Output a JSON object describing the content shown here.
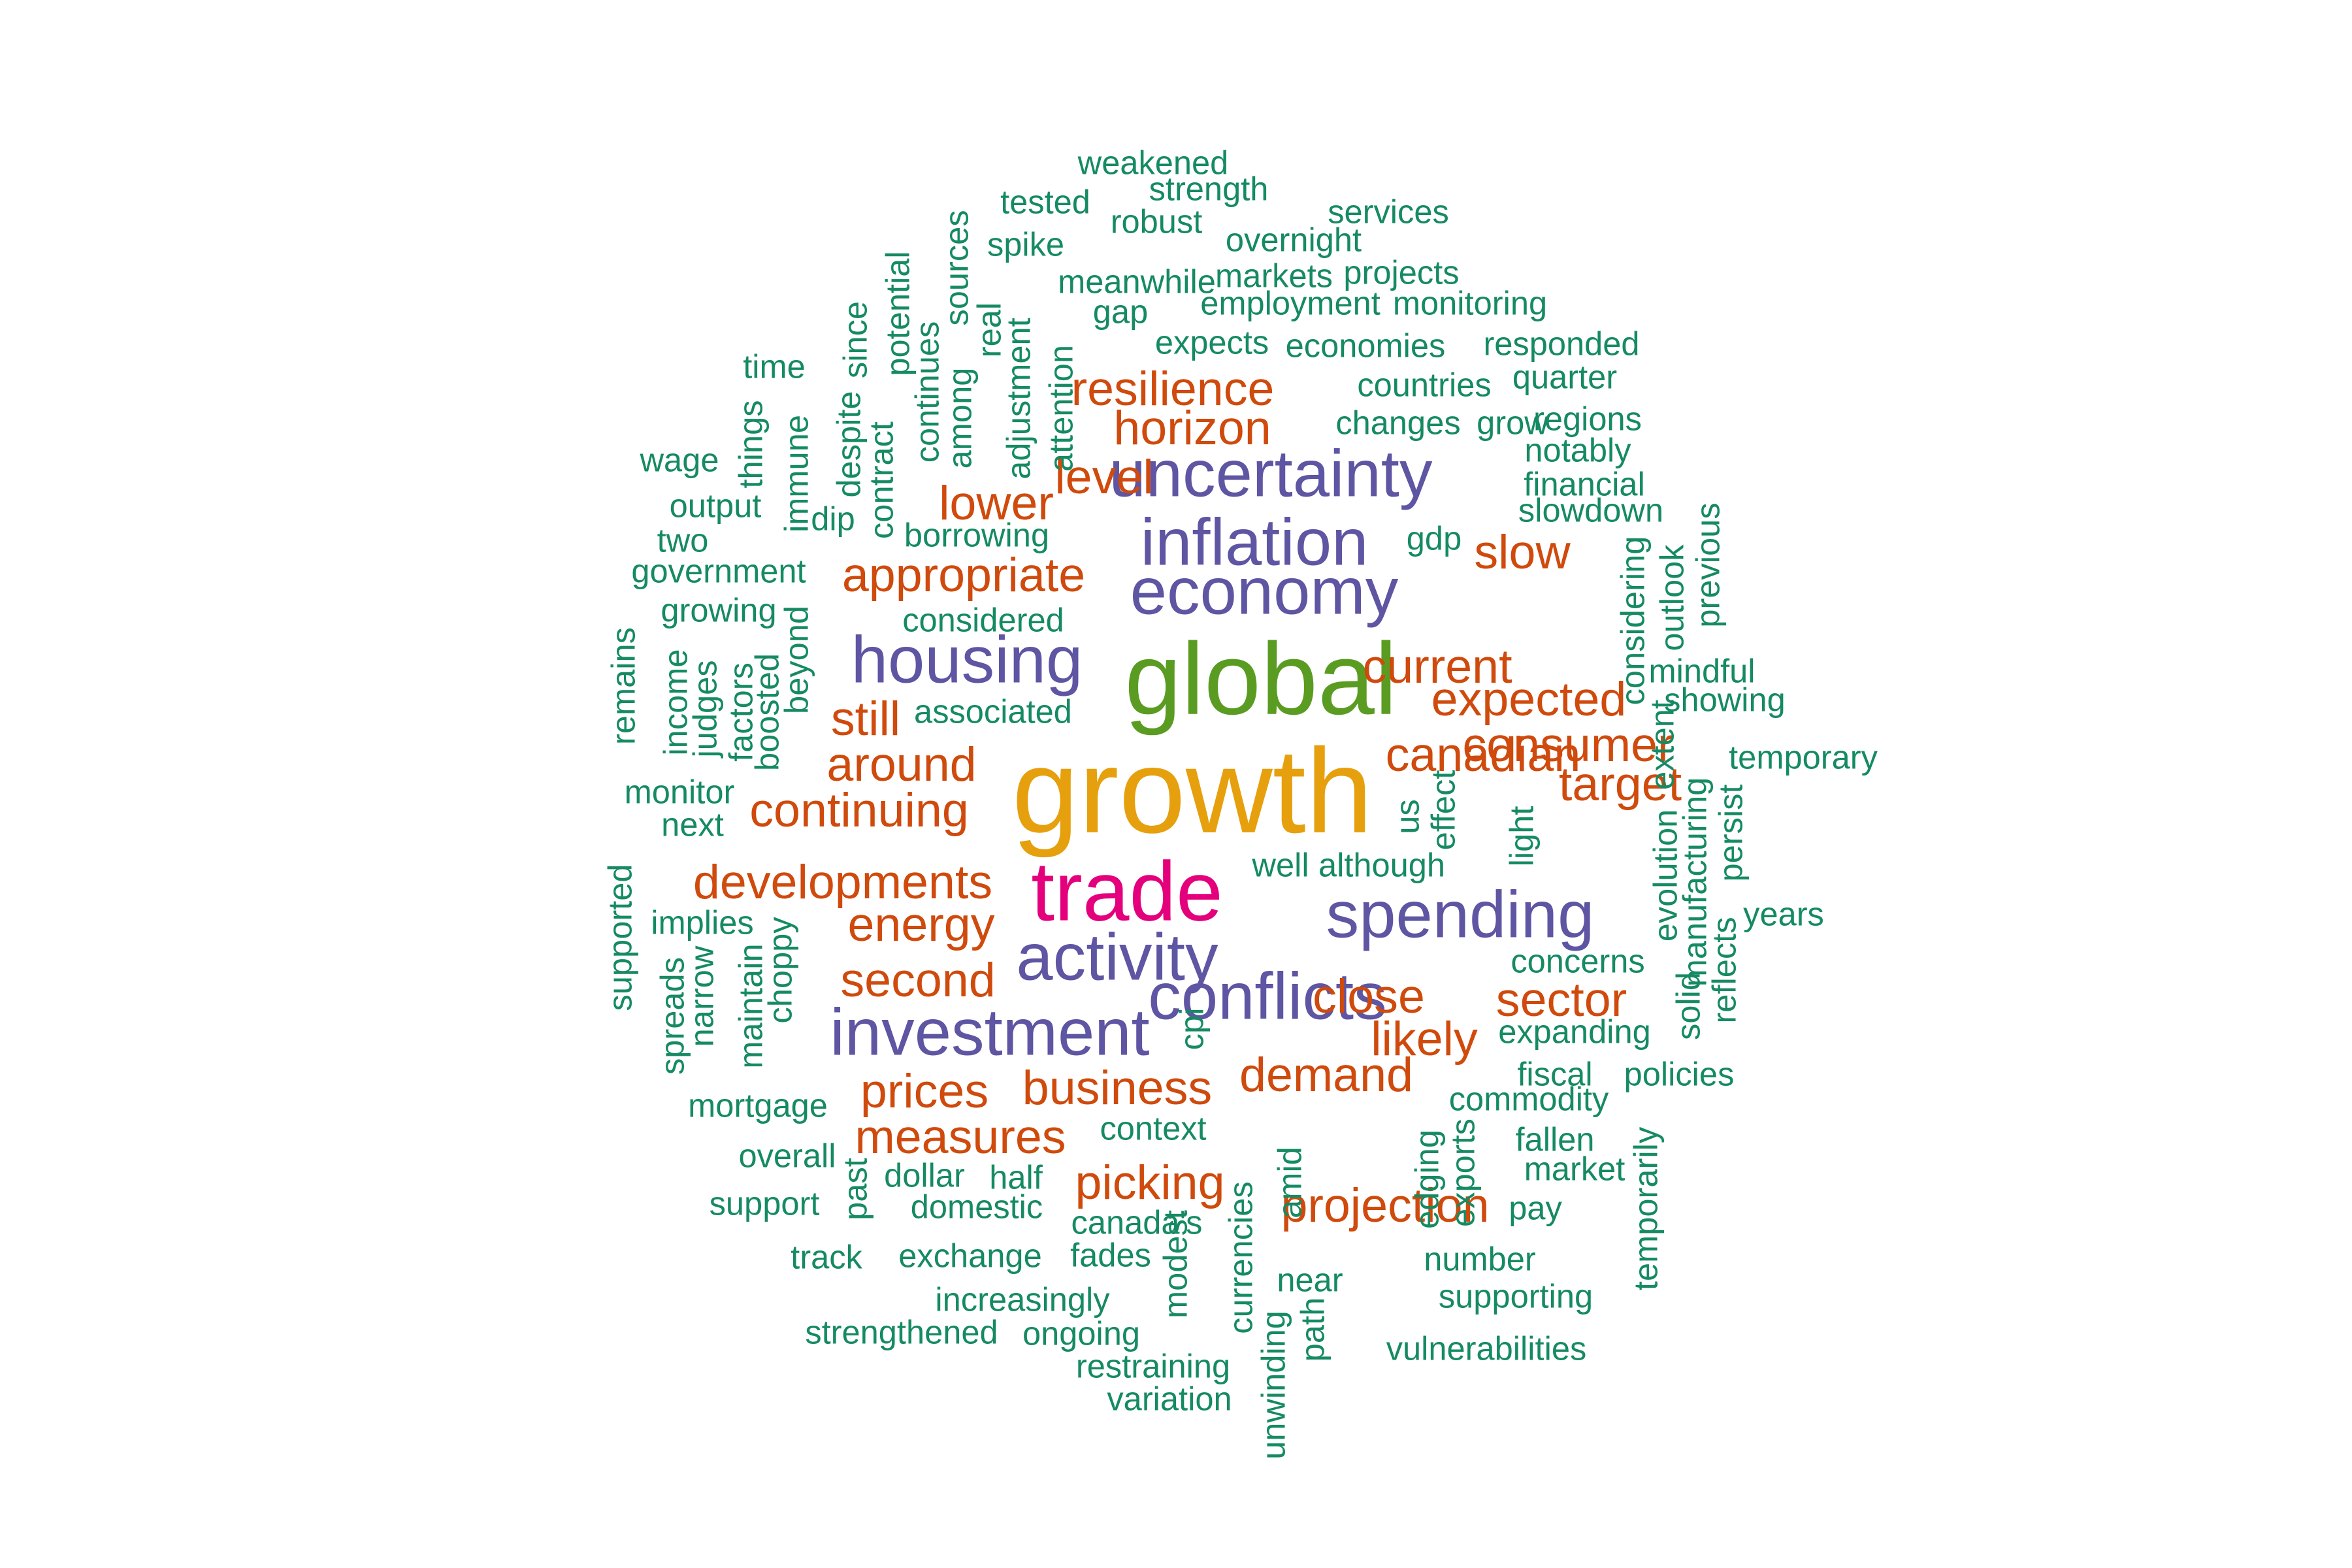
{
  "colors": {
    "top": "#E6A00D",
    "second": "#E4007C",
    "third": "#5A9C22",
    "mid": "#5E55A3",
    "low": "#CF4A0C",
    "base": "#158A63"
  },
  "words": [
    {
      "text": "growth",
      "tier": "top",
      "size": 80
    },
    {
      "text": "global",
      "tier": "third",
      "size": 68
    },
    {
      "text": "trade",
      "tier": "second",
      "size": 56
    },
    {
      "text": "uncertainty",
      "tier": "mid",
      "size": 44
    },
    {
      "text": "inflation",
      "tier": "mid",
      "size": 44
    },
    {
      "text": "economy",
      "tier": "mid",
      "size": 44
    },
    {
      "text": "housing",
      "tier": "mid",
      "size": 44
    },
    {
      "text": "activity",
      "tier": "mid",
      "size": 44
    },
    {
      "text": "spending",
      "tier": "mid",
      "size": 44
    },
    {
      "text": "investment",
      "tier": "mid",
      "size": 44
    },
    {
      "text": "conflicts",
      "tier": "mid",
      "size": 44
    },
    {
      "text": "resilience",
      "tier": "low",
      "size": 32
    },
    {
      "text": "horizon",
      "tier": "low",
      "size": 32
    },
    {
      "text": "lower",
      "tier": "low",
      "size": 32
    },
    {
      "text": "level",
      "tier": "low",
      "size": 32
    },
    {
      "text": "appropriate",
      "tier": "low",
      "size": 32
    },
    {
      "text": "slow",
      "tier": "low",
      "size": 32
    },
    {
      "text": "current",
      "tier": "low",
      "size": 32
    },
    {
      "text": "expected",
      "tier": "low",
      "size": 32
    },
    {
      "text": "consumer",
      "tier": "low",
      "size": 32
    },
    {
      "text": "canadian",
      "tier": "low",
      "size": 32
    },
    {
      "text": "target",
      "tier": "low",
      "size": 32
    },
    {
      "text": "still",
      "tier": "low",
      "size": 32
    },
    {
      "text": "around",
      "tier": "low",
      "size": 32
    },
    {
      "text": "continuing",
      "tier": "low",
      "size": 32
    },
    {
      "text": "developments",
      "tier": "low",
      "size": 32
    },
    {
      "text": "energy",
      "tier": "low",
      "size": 32
    },
    {
      "text": "second",
      "tier": "low",
      "size": 32
    },
    {
      "text": "close",
      "tier": "low",
      "size": 32
    },
    {
      "text": "sector",
      "tier": "low",
      "size": 32
    },
    {
      "text": "likely",
      "tier": "low",
      "size": 32
    },
    {
      "text": "demand",
      "tier": "low",
      "size": 32
    },
    {
      "text": "prices",
      "tier": "low",
      "size": 32
    },
    {
      "text": "business",
      "tier": "low",
      "size": 32
    },
    {
      "text": "measures",
      "tier": "low",
      "size": 32
    },
    {
      "text": "picking",
      "tier": "low",
      "size": 32
    },
    {
      "text": "projection",
      "tier": "low",
      "size": 32
    },
    {
      "text": "weakened",
      "tier": "base",
      "size": 22
    },
    {
      "text": "strength",
      "tier": "base",
      "size": 22
    },
    {
      "text": "tested",
      "tier": "base",
      "size": 22
    },
    {
      "text": "robust",
      "tier": "base",
      "size": 22
    },
    {
      "text": "services",
      "tier": "base",
      "size": 22
    },
    {
      "text": "overnight",
      "tier": "base",
      "size": 22
    },
    {
      "text": "spike",
      "tier": "base",
      "size": 22
    },
    {
      "text": "meanwhile",
      "tier": "base",
      "size": 22
    },
    {
      "text": "markets",
      "tier": "base",
      "size": 22
    },
    {
      "text": "projects",
      "tier": "base",
      "size": 22
    },
    {
      "text": "gap",
      "tier": "base",
      "size": 22
    },
    {
      "text": "employment",
      "tier": "base",
      "size": 22
    },
    {
      "text": "monitoring",
      "tier": "base",
      "size": 22
    },
    {
      "text": "expects",
      "tier": "base",
      "size": 22
    },
    {
      "text": "economies",
      "tier": "base",
      "size": 22
    },
    {
      "text": "responded",
      "tier": "base",
      "size": 22
    },
    {
      "text": "time",
      "tier": "base",
      "size": 22
    },
    {
      "text": "countries",
      "tier": "base",
      "size": 22
    },
    {
      "text": "quarter",
      "tier": "base",
      "size": 22
    },
    {
      "text": "changes",
      "tier": "base",
      "size": 22
    },
    {
      "text": "grow",
      "tier": "base",
      "size": 22
    },
    {
      "text": "regions",
      "tier": "base",
      "size": 22
    },
    {
      "text": "wage",
      "tier": "base",
      "size": 22
    },
    {
      "text": "notably",
      "tier": "base",
      "size": 22
    },
    {
      "text": "output",
      "tier": "base",
      "size": 22
    },
    {
      "text": "financial",
      "tier": "base",
      "size": 22
    },
    {
      "text": "slowdown",
      "tier": "base",
      "size": 22
    },
    {
      "text": "two",
      "tier": "base",
      "size": 22
    },
    {
      "text": "dip",
      "tier": "base",
      "size": 22
    },
    {
      "text": "borrowing",
      "tier": "base",
      "size": 22
    },
    {
      "text": "gdp",
      "tier": "base",
      "size": 22
    },
    {
      "text": "government",
      "tier": "base",
      "size": 22
    },
    {
      "text": "growing",
      "tier": "base",
      "size": 22
    },
    {
      "text": "considered",
      "tier": "base",
      "size": 22
    },
    {
      "text": "mindful",
      "tier": "base",
      "size": 22
    },
    {
      "text": "showing",
      "tier": "base",
      "size": 22
    },
    {
      "text": "associated",
      "tier": "base",
      "size": 22
    },
    {
      "text": "temporary",
      "tier": "base",
      "size": 22
    },
    {
      "text": "monitor",
      "tier": "base",
      "size": 22
    },
    {
      "text": "next",
      "tier": "base",
      "size": 22
    },
    {
      "text": "well",
      "tier": "base",
      "size": 22
    },
    {
      "text": "although",
      "tier": "base",
      "size": 22
    },
    {
      "text": "implies",
      "tier": "base",
      "size": 22
    },
    {
      "text": "years",
      "tier": "base",
      "size": 22
    },
    {
      "text": "concerns",
      "tier": "base",
      "size": 22
    },
    {
      "text": "expanding",
      "tier": "base",
      "size": 22
    },
    {
      "text": "fiscal",
      "tier": "base",
      "size": 22
    },
    {
      "text": "policies",
      "tier": "base",
      "size": 22
    },
    {
      "text": "mortgage",
      "tier": "base",
      "size": 22
    },
    {
      "text": "commodity",
      "tier": "base",
      "size": 22
    },
    {
      "text": "context",
      "tier": "base",
      "size": 22
    },
    {
      "text": "fallen",
      "tier": "base",
      "size": 22
    },
    {
      "text": "overall",
      "tier": "base",
      "size": 22
    },
    {
      "text": "dollar",
      "tier": "base",
      "size": 22
    },
    {
      "text": "half",
      "tier": "base",
      "size": 22
    },
    {
      "text": "market",
      "tier": "base",
      "size": 22
    },
    {
      "text": "support",
      "tier": "base",
      "size": 22
    },
    {
      "text": "domestic",
      "tier": "base",
      "size": 22
    },
    {
      "text": "pay",
      "tier": "base",
      "size": 22
    },
    {
      "text": "canada's",
      "tier": "base",
      "size": 22
    },
    {
      "text": "track",
      "tier": "base",
      "size": 22
    },
    {
      "text": "exchange",
      "tier": "base",
      "size": 22
    },
    {
      "text": "fades",
      "tier": "base",
      "size": 22
    },
    {
      "text": "number",
      "tier": "base",
      "size": 22
    },
    {
      "text": "near",
      "tier": "base",
      "size": 22
    },
    {
      "text": "increasingly",
      "tier": "base",
      "size": 22
    },
    {
      "text": "supporting",
      "tier": "base",
      "size": 22
    },
    {
      "text": "strengthened",
      "tier": "base",
      "size": 22
    },
    {
      "text": "ongoing",
      "tier": "base",
      "size": 22
    },
    {
      "text": "vulnerabilities",
      "tier": "base",
      "size": 22
    },
    {
      "text": "restraining",
      "tier": "base",
      "size": 22
    },
    {
      "text": "variation",
      "tier": "base",
      "size": 22
    },
    {
      "text": "sources",
      "tier": "base",
      "size": 22,
      "vertical": true
    },
    {
      "text": "potential",
      "tier": "base",
      "size": 22,
      "vertical": true
    },
    {
      "text": "since",
      "tier": "base",
      "size": 22,
      "vertical": true
    },
    {
      "text": "real",
      "tier": "base",
      "size": 22,
      "vertical": true
    },
    {
      "text": "continues",
      "tier": "base",
      "size": 22,
      "vertical": true
    },
    {
      "text": "among",
      "tier": "base",
      "size": 22,
      "vertical": true
    },
    {
      "text": "adjustment",
      "tier": "base",
      "size": 22,
      "vertical": true
    },
    {
      "text": "attention",
      "tier": "base",
      "size": 22,
      "vertical": true
    },
    {
      "text": "despite",
      "tier": "base",
      "size": 22,
      "vertical": true
    },
    {
      "text": "contract",
      "tier": "base",
      "size": 22,
      "vertical": true
    },
    {
      "text": "things",
      "tier": "base",
      "size": 22,
      "vertical": true
    },
    {
      "text": "immune",
      "tier": "base",
      "size": 22,
      "vertical": true
    },
    {
      "text": "remains",
      "tier": "base",
      "size": 22,
      "vertical": true
    },
    {
      "text": "income",
      "tier": "base",
      "size": 22,
      "vertical": true
    },
    {
      "text": "judges",
      "tier": "base",
      "size": 22,
      "vertical": true
    },
    {
      "text": "factors",
      "tier": "base",
      "size": 22,
      "vertical": true
    },
    {
      "text": "boosted",
      "tier": "base",
      "size": 22,
      "vertical": true
    },
    {
      "text": "beyond",
      "tier": "base",
      "size": 22,
      "vertical": true
    },
    {
      "text": "considering",
      "tier": "base",
      "size": 22,
      "vertical": true
    },
    {
      "text": "outlook",
      "tier": "base",
      "size": 22,
      "vertical": true
    },
    {
      "text": "previous",
      "tier": "base",
      "size": 22,
      "vertical": true
    },
    {
      "text": "extent",
      "tier": "base",
      "size": 22,
      "vertical": true
    },
    {
      "text": "evolution",
      "tier": "base",
      "size": 22,
      "vertical": true
    },
    {
      "text": "manufacturing",
      "tier": "base",
      "size": 22,
      "vertical": true
    },
    {
      "text": "persist",
      "tier": "base",
      "size": 22,
      "vertical": true
    },
    {
      "text": "solid",
      "tier": "base",
      "size": 22,
      "vertical": true
    },
    {
      "text": "reflects",
      "tier": "base",
      "size": 22,
      "vertical": true
    },
    {
      "text": "us",
      "tier": "base",
      "size": 22,
      "vertical": true
    },
    {
      "text": "effect",
      "tier": "base",
      "size": 22,
      "vertical": true
    },
    {
      "text": "light",
      "tier": "base",
      "size": 22,
      "vertical": true
    },
    {
      "text": "supported",
      "tier": "base",
      "size": 22,
      "vertical": true
    },
    {
      "text": "spreads",
      "tier": "base",
      "size": 22,
      "vertical": true
    },
    {
      "text": "narrow",
      "tier": "base",
      "size": 22,
      "vertical": true
    },
    {
      "text": "maintain",
      "tier": "base",
      "size": 22,
      "vertical": true
    },
    {
      "text": "choppy",
      "tier": "base",
      "size": 22,
      "vertical": true
    },
    {
      "text": "cpi",
      "tier": "base",
      "size": 22,
      "vertical": true
    },
    {
      "text": "past",
      "tier": "base",
      "size": 22,
      "vertical": true
    },
    {
      "text": "amid",
      "tier": "base",
      "size": 22,
      "vertical": true
    },
    {
      "text": "edging",
      "tier": "base",
      "size": 22,
      "vertical": true
    },
    {
      "text": "exports",
      "tier": "base",
      "size": 22,
      "vertical": true
    },
    {
      "text": "temporarily",
      "tier": "base",
      "size": 22,
      "vertical": true
    },
    {
      "text": "modest",
      "tier": "base",
      "size": 22,
      "vertical": true
    },
    {
      "text": "currencies",
      "tier": "base",
      "size": 22,
      "vertical": true
    },
    {
      "text": "unwinding",
      "tier": "base",
      "size": 22,
      "vertical": true
    },
    {
      "text": "path",
      "tier": "base",
      "size": 22,
      "vertical": true
    }
  ]
}
